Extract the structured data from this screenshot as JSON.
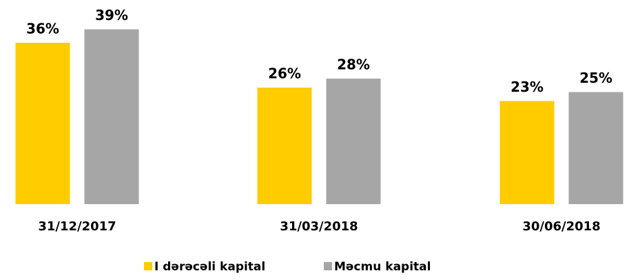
{
  "chart_data": {
    "type": "bar",
    "categories": [
      "31/12/2017",
      "31/03/2018",
      "30/06/2018"
    ],
    "series": [
      {
        "name": "I dərəcəli kapital",
        "color": "#FFCC00",
        "values": [
          36,
          26,
          23
        ],
        "value_labels": [
          "36%",
          "26%",
          "23%"
        ]
      },
      {
        "name": "Məcmu kapital",
        "color": "#A6A6A6",
        "values": [
          39,
          28,
          25
        ],
        "value_labels": [
          "39%",
          "28%",
          "25%"
        ]
      }
    ]
  }
}
